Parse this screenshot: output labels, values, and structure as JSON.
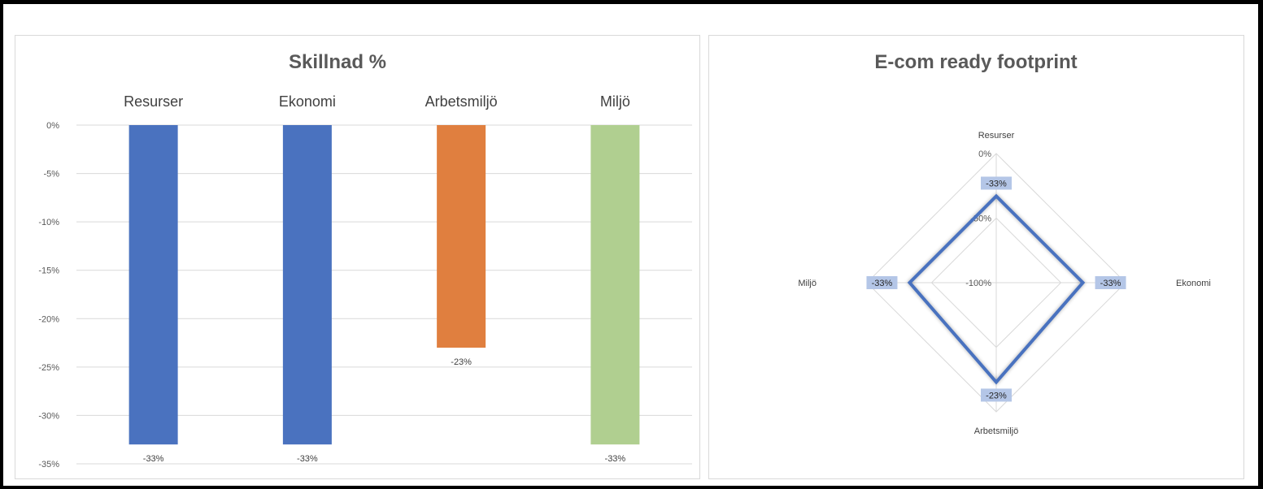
{
  "chart_data": [
    {
      "type": "bar",
      "title": "Skillnad %",
      "categories": [
        "Resurser",
        "Ekonomi",
        "Arbetsmiljö",
        "Miljö"
      ],
      "values": [
        -0.33,
        -0.33,
        -0.23,
        -0.33
      ],
      "data_labels": [
        "-33%",
        "-33%",
        "-23%",
        "-33%"
      ],
      "bar_colors": [
        "#4a72bf",
        "#4a72bf",
        "#e07f3f",
        "#b0cf90"
      ],
      "y_ticks": [
        0,
        -0.05,
        -0.1,
        -0.15,
        -0.2,
        -0.25,
        -0.3,
        -0.35
      ],
      "y_tick_labels": [
        "0%",
        "-5%",
        "-10%",
        "-15%",
        "-20%",
        "-25%",
        "-30%",
        "-35%"
      ],
      "ylim": [
        -0.35,
        0
      ],
      "category_axis_position": "top",
      "grid": true,
      "legend": "none"
    },
    {
      "type": "radar",
      "title": "E-com ready footprint",
      "axes": [
        "Resurser",
        "Ekonomi",
        "Arbetsmiljö",
        "Miljö"
      ],
      "values": [
        -0.33,
        -0.33,
        -0.23,
        -0.33
      ],
      "data_labels": [
        "-33%",
        "-33%",
        "-23%",
        "-33%"
      ],
      "rlim": [
        -1,
        0
      ],
      "r_ticks": [
        0,
        -0.5,
        -1
      ],
      "r_tick_labels": [
        "0%",
        "-50%",
        "-100%"
      ],
      "series_color": "#4a72bf",
      "grid": true,
      "legend": "none"
    }
  ]
}
